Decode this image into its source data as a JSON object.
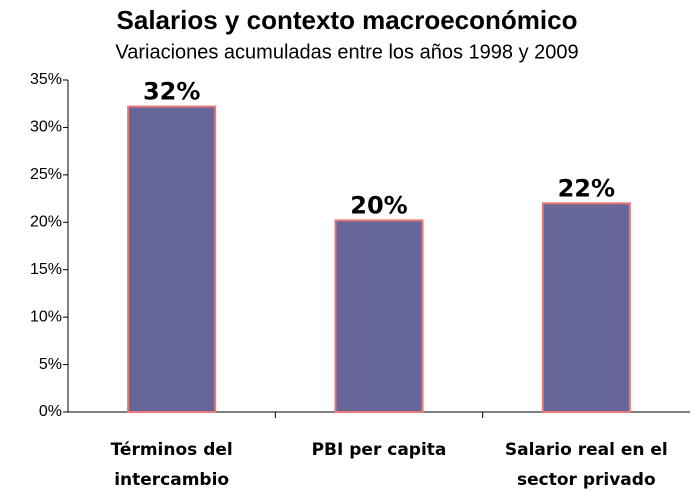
{
  "chart_data": {
    "type": "bar",
    "title": "Salarios y contexto  macroeconómico",
    "subtitle": "Variaciones acumuladas entre los años 1998 y 2009",
    "categories": [
      "Términos del intercambio",
      "PBI per capita",
      "Salario real en el sector privado"
    ],
    "values": [
      32.2,
      20.2,
      22
    ],
    "value_labels": [
      "32%",
      "20%",
      "22%"
    ],
    "color": "#666699",
    "edgecolor": "#e8787a",
    "ylim": [
      0,
      35
    ],
    "yticks": [
      {
        "value": 0,
        "label": "0%"
      },
      {
        "value": 5,
        "label": "5%"
      },
      {
        "value": 10,
        "label": "10%"
      },
      {
        "value": 15,
        "label": "15%"
      },
      {
        "value": 20,
        "label": "20%"
      },
      {
        "value": 25,
        "label": "25%"
      },
      {
        "value": 30,
        "label": "30%"
      },
      {
        "value": 35,
        "label": "35%"
      }
    ],
    "grid": false
  }
}
